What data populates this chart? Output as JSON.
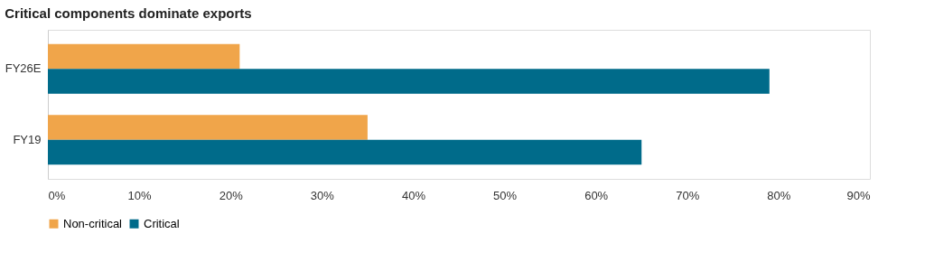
{
  "chart_data": {
    "type": "bar",
    "orientation": "horizontal",
    "title": "Critical components dominate exports",
    "categories": [
      "FY26E",
      "FY19"
    ],
    "series": [
      {
        "name": "Non-critical",
        "color": "#f0a54a",
        "values": [
          21,
          35
        ]
      },
      {
        "name": "Critical",
        "color": "#006b8a",
        "values": [
          79,
          65
        ]
      }
    ],
    "xlim": [
      0,
      90
    ],
    "xticks": [
      {
        "value": 0,
        "label": "0%"
      },
      {
        "value": 10,
        "label": "10%"
      },
      {
        "value": 20,
        "label": "20%"
      },
      {
        "value": 30,
        "label": "30%"
      },
      {
        "value": 40,
        "label": "40%"
      },
      {
        "value": 50,
        "label": "50%"
      },
      {
        "value": 60,
        "label": "60%"
      },
      {
        "value": 70,
        "label": "70%"
      },
      {
        "value": 80,
        "label": "80%"
      },
      {
        "value": 90,
        "label": "90%"
      }
    ],
    "grid": false,
    "legend": "bottom"
  }
}
